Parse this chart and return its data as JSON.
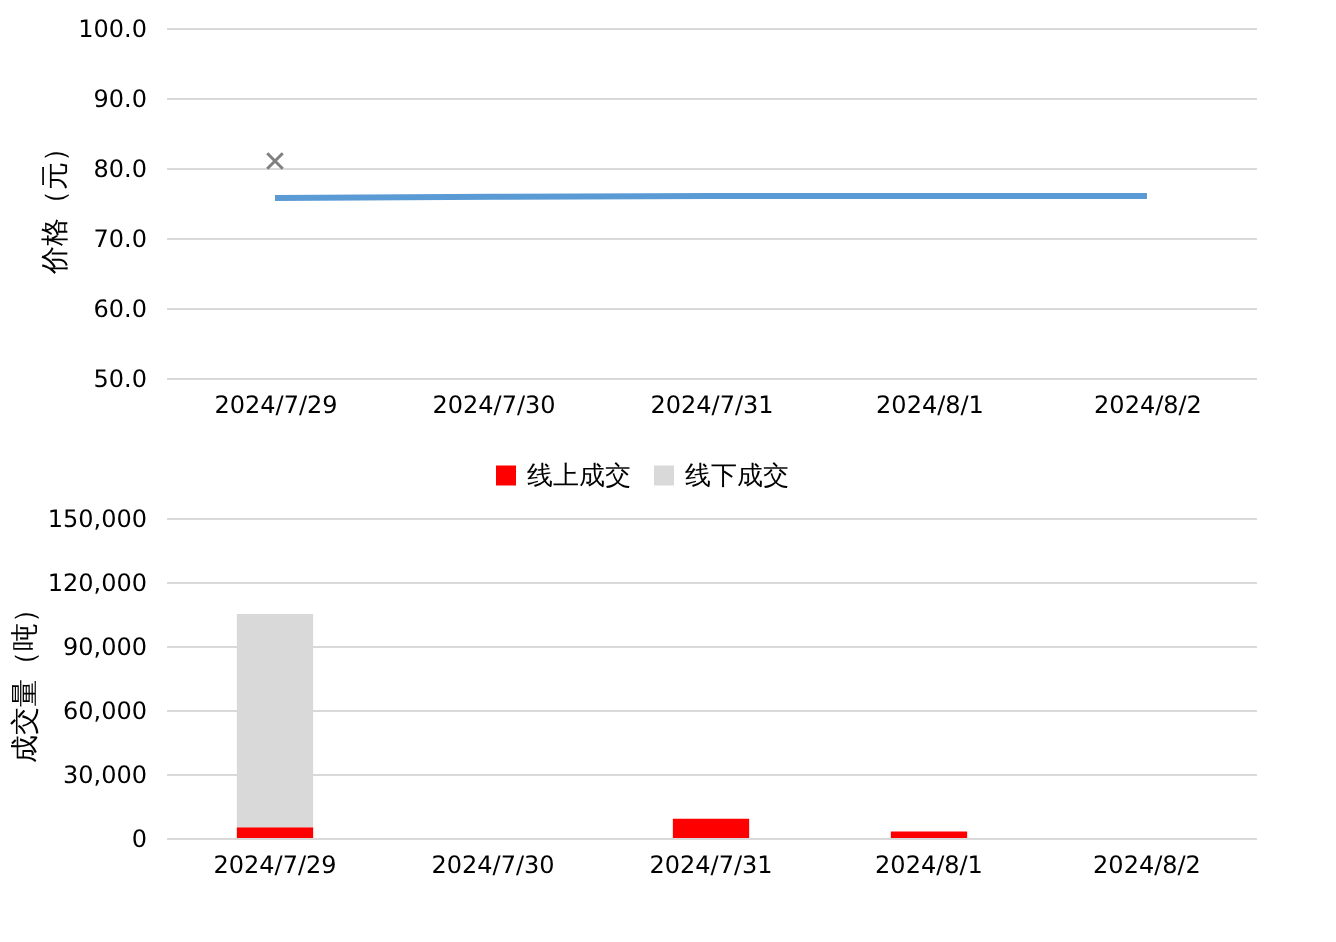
{
  "chart_data": [
    {
      "type": "line",
      "ylabel": "价格（元）",
      "categories": [
        "2024/7/29",
        "2024/7/30",
        "2024/7/31",
        "2024/8/1",
        "2024/8/2"
      ],
      "ylim": [
        50,
        100
      ],
      "yticks": [
        {
          "value": 50,
          "label": "50.0"
        },
        {
          "value": 60,
          "label": "60.0"
        },
        {
          "value": 70,
          "label": "70.0"
        },
        {
          "value": 80,
          "label": "80.0"
        },
        {
          "value": 90,
          "label": "90.0"
        },
        {
          "value": 100,
          "label": "100.0"
        }
      ],
      "grid": "y",
      "legend": false,
      "series": [
        {
          "type": "line",
          "color": "#5b9bd5",
          "marker": "none",
          "values": [
            75.7,
            75.9,
            76.0,
            76.0,
            76.0
          ]
        },
        {
          "type": "scatter",
          "color": "#808080",
          "marker": "cross",
          "values": [
            81.0,
            null,
            null,
            null,
            null
          ]
        }
      ]
    },
    {
      "type": "bar",
      "stacked": true,
      "ylabel": "成交量（吨）",
      "categories": [
        "2024/7/29",
        "2024/7/30",
        "2024/7/31",
        "2024/8/1",
        "2024/8/2"
      ],
      "ylim": [
        0,
        150000
      ],
      "yticks": [
        0,
        {
          "value": 30000,
          "label": "30,000"
        },
        {
          "value": 60000,
          "label": "60,000"
        },
        {
          "value": 90000,
          "label": "90,000"
        },
        {
          "value": 120000,
          "label": "120,000"
        },
        {
          "value": 150000,
          "label": "150,000"
        }
      ],
      "grid": "y",
      "legend": "top",
      "series": [
        {
          "name": "线上成交",
          "color": "#ff0000",
          "values": [
            5000,
            0,
            9000,
            3000,
            0
          ]
        },
        {
          "name": "线下成交",
          "color": "#d9d9d9",
          "values": [
            100000,
            0,
            0,
            0,
            0
          ]
        }
      ]
    }
  ]
}
